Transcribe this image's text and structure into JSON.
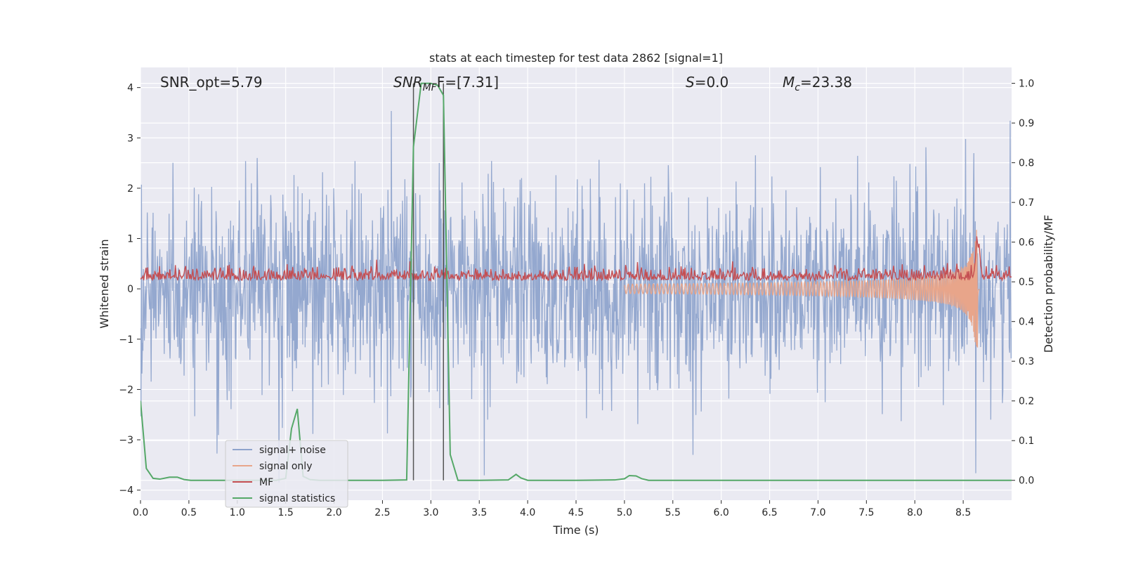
{
  "chart_data": {
    "type": "line",
    "title": "stats at each timestep for test data 2862 [signal=1]",
    "xlabel": "Time (s)",
    "ylabel": "Whitened strain",
    "ylabel_right": "Detection probability/MF",
    "xlim": [
      0,
      9.0
    ],
    "ylim": [
      -4.2,
      4.4
    ],
    "ylim_right": [
      -0.05,
      1.04
    ],
    "x_ticks": [
      "0.0",
      "0.5",
      "1.0",
      "1.5",
      "2.0",
      "2.5",
      "3.0",
      "3.5",
      "4.0",
      "4.5",
      "5.0",
      "5.5",
      "6.0",
      "6.5",
      "7.0",
      "7.5",
      "8.0",
      "8.5"
    ],
    "y_ticks": [
      "−4",
      "−3",
      "−2",
      "−1",
      "0",
      "1",
      "2",
      "3",
      "4"
    ],
    "y_ticks_right": [
      "0.0",
      "0.1",
      "0.2",
      "0.3",
      "0.4",
      "0.5",
      "0.6",
      "0.7",
      "0.8",
      "0.9",
      "1.0"
    ],
    "grid": true,
    "legend_position": "lower-left",
    "annotations": {
      "snr_opt": "SNR_opt=5.79",
      "snr_mf_main": "SNR",
      "snr_mf_sub": "MF",
      "snr_mf_value": "F=[7.31]",
      "s_main": "S",
      "s_value": "=0.0",
      "mc_main": "M",
      "mc_sub": "c",
      "mc_value": "=23.38"
    },
    "vertical_lines_x": [
      2.82,
      3.13
    ],
    "series": [
      {
        "name": "signal+ noise",
        "color": "#8fa4cc",
        "axis": "left",
        "kind": "noise",
        "sigma": 1.0,
        "samples": 1800
      },
      {
        "name": "signal only",
        "color": "#e8a58a",
        "axis": "left",
        "kind": "chirp",
        "t_merge": 8.65,
        "peak": 1.2
      },
      {
        "name": "MF",
        "color": "#c44e52",
        "axis": "left",
        "kind": "mf",
        "baseline": 0.2,
        "peak_x": 8.65,
        "peak_y": 1.0
      },
      {
        "name": "signal statistics",
        "color": "#55a868",
        "axis": "right",
        "kind": "line",
        "x": [
          0.0,
          0.06,
          0.13,
          0.2,
          0.3,
          0.38,
          0.45,
          0.52,
          0.6,
          1.0,
          1.4,
          1.5,
          1.56,
          1.62,
          1.68,
          1.75,
          1.85,
          2.0,
          2.5,
          2.75,
          2.82,
          2.9,
          3.0,
          3.07,
          3.13,
          3.2,
          3.28,
          3.5,
          3.8,
          3.88,
          3.93,
          4.0,
          4.5,
          4.9,
          5.0,
          5.05,
          5.12,
          5.18,
          5.25,
          5.4,
          6.0,
          7.0,
          8.0,
          9.0
        ],
        "y": [
          0.2,
          0.03,
          0.005,
          0.003,
          0.008,
          0.008,
          0.002,
          0.0,
          0.0,
          0.0,
          0.0,
          0.005,
          0.13,
          0.18,
          0.01,
          0.002,
          0.0,
          0.0,
          0.0,
          0.001,
          0.84,
          1.0,
          1.0,
          0.995,
          0.97,
          0.065,
          0.0,
          0.0,
          0.001,
          0.015,
          0.006,
          0.0,
          0.0,
          0.001,
          0.004,
          0.012,
          0.011,
          0.004,
          0.0,
          0.0,
          0.0,
          0.0,
          0.0,
          0.0
        ]
      }
    ]
  }
}
